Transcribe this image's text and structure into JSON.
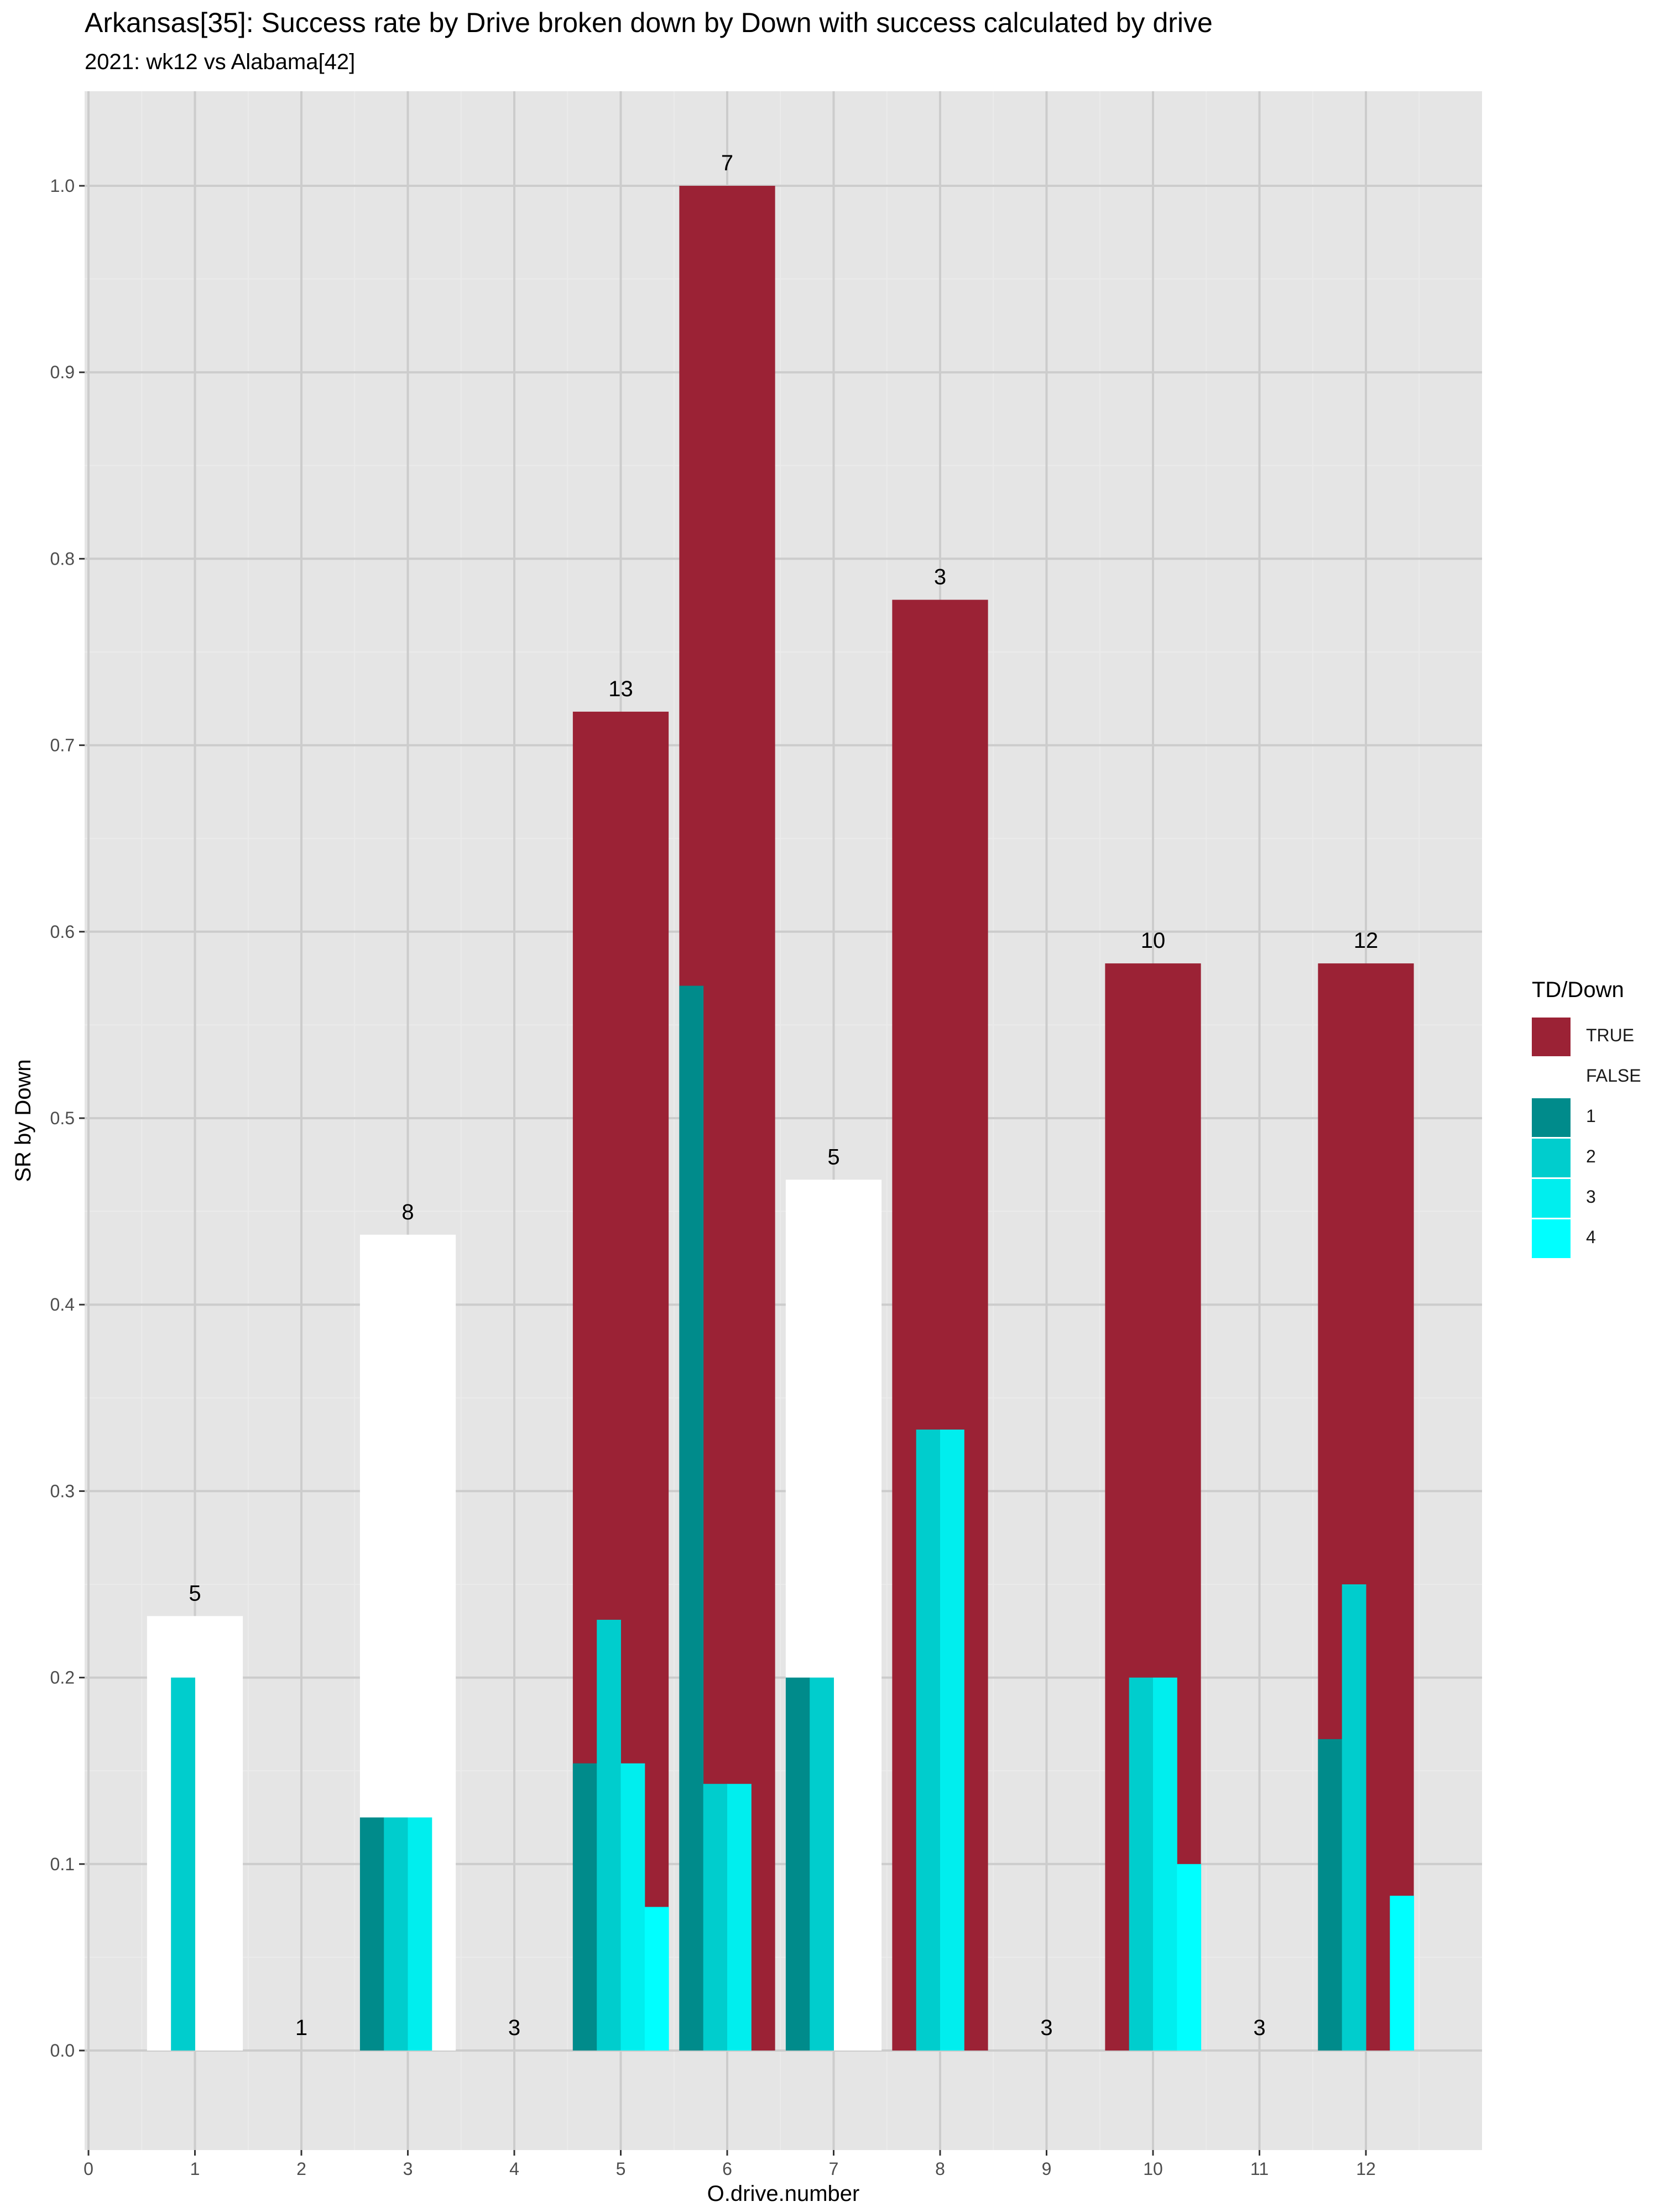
{
  "title": "Arkansas[35]: Success rate by Drive broken down by Down with success calculated by drive",
  "subtitle": "2021: wk12 vs Alabama[42]",
  "colors": {
    "panel": "#e5e5e5",
    "grid": "#cccccc",
    "true": "#9b2235",
    "false": "#ffffff",
    "down1": "#008b8b",
    "down2": "#00cdcd",
    "down3": "#00eeee",
    "down4": "#00ffff"
  },
  "legend": {
    "title": "TD/Down",
    "items": [
      {
        "label": "TRUE",
        "color": "#9b2235"
      },
      {
        "label": "FALSE",
        "color": "#ffffff"
      },
      {
        "label": "1",
        "color": "#008b8b"
      },
      {
        "label": "2",
        "color": "#00cdcd"
      },
      {
        "label": "3",
        "color": "#00eeee"
      },
      {
        "label": "4",
        "color": "#00ffff"
      }
    ]
  },
  "chart_data": {
    "type": "bar",
    "xlabel": "O.drive.number",
    "ylabel": "SR by Down",
    "xlim": [
      0,
      12.8
    ],
    "ylim": [
      -0.05,
      1.05
    ],
    "x_ticks": [
      "0",
      "1",
      "2",
      "3",
      "4",
      "5",
      "6",
      "7",
      "8",
      "9",
      "10",
      "11",
      "12"
    ],
    "y_ticks": [
      "0.0",
      "0.1",
      "0.2",
      "0.3",
      "0.4",
      "0.5",
      "0.6",
      "0.7",
      "0.8",
      "0.9",
      "1.0"
    ],
    "grid": true,
    "legend_position": "right",
    "drives": [
      {
        "drive": 1,
        "td": false,
        "sr": 0.233,
        "label": "5",
        "downs": [
          0,
          0.2,
          0,
          0
        ]
      },
      {
        "drive": 2,
        "td": false,
        "sr": 0,
        "label": "1",
        "downs": [
          0,
          0,
          0,
          0
        ]
      },
      {
        "drive": 3,
        "td": false,
        "sr": 0.4375,
        "label": "8",
        "downs": [
          0.125,
          0.125,
          0.125,
          0
        ]
      },
      {
        "drive": 4,
        "td": false,
        "sr": 0,
        "label": "3",
        "downs": [
          0,
          0,
          0,
          0
        ]
      },
      {
        "drive": 5,
        "td": true,
        "sr": 0.718,
        "label": "13",
        "downs": [
          0.154,
          0.231,
          0.154,
          0.077
        ]
      },
      {
        "drive": 6,
        "td": true,
        "sr": 1.0,
        "label": "7",
        "downs": [
          0.571,
          0.143,
          0.143,
          0
        ]
      },
      {
        "drive": 7,
        "td": false,
        "sr": 0.467,
        "label": "5",
        "downs": [
          0.2,
          0.2,
          0,
          0
        ]
      },
      {
        "drive": 8,
        "td": true,
        "sr": 0.778,
        "label": "3",
        "downs": [
          0,
          0.333,
          0.333,
          0
        ]
      },
      {
        "drive": 9,
        "td": false,
        "sr": 0,
        "label": "3",
        "downs": [
          0,
          0,
          0,
          0
        ]
      },
      {
        "drive": 10,
        "td": true,
        "sr": 0.583,
        "label": "10",
        "downs": [
          0,
          0.2,
          0.2,
          0.1
        ]
      },
      {
        "drive": 11,
        "td": false,
        "sr": 0,
        "label": "3",
        "downs": [
          0,
          0,
          0,
          0
        ]
      },
      {
        "drive": 12,
        "td": true,
        "sr": 0.583,
        "label": "12",
        "downs": [
          0.167,
          0.25,
          0,
          0.083
        ]
      }
    ]
  }
}
